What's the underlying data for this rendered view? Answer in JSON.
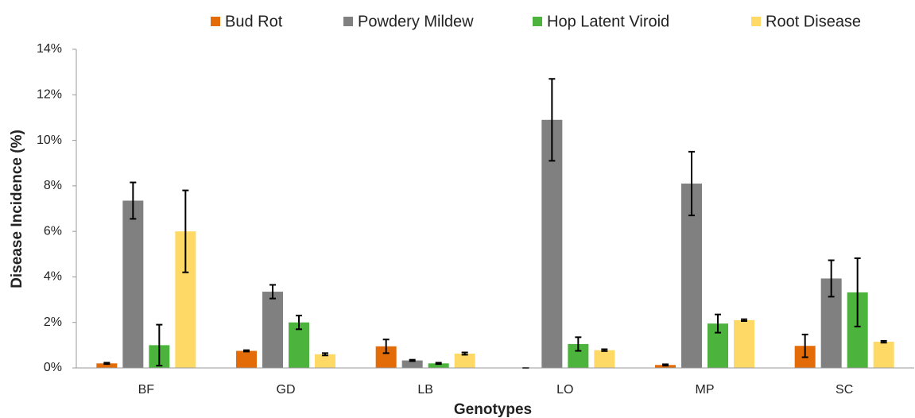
{
  "chart_data": {
    "type": "bar",
    "categories": [
      "BF",
      "GD",
      "LB",
      "LO",
      "MP",
      "SC"
    ],
    "x_label": "Genotypes",
    "y_label": "Disease Incidence (%)",
    "ylim": [
      0,
      14
    ],
    "yticks": [
      {
        "value": 0,
        "label": "0%"
      },
      {
        "value": 2,
        "label": "2%"
      },
      {
        "value": 4,
        "label": "4%"
      },
      {
        "value": 6,
        "label": "6%"
      },
      {
        "value": 8,
        "label": "8%"
      },
      {
        "value": 10,
        "label": "10%"
      },
      {
        "value": 12,
        "label": "12%"
      },
      {
        "value": 14,
        "label": "14%"
      }
    ],
    "grid": false,
    "legend": "top",
    "series": [
      {
        "name": "Bud Rot",
        "color": "#e36c09",
        "values": [
          0.2,
          0.75,
          0.95,
          0.0,
          0.13,
          0.97
        ],
        "errors": [
          0.03,
          0.03,
          0.3,
          0,
          0.03,
          0.5
        ]
      },
      {
        "name": "Powdery Mildew",
        "color": "#808080",
        "values": [
          7.35,
          3.35,
          0.33,
          10.9,
          8.1,
          3.93
        ],
        "errors": [
          0.8,
          0.3,
          0.03,
          1.8,
          1.4,
          0.8
        ]
      },
      {
        "name": "Hop Latent Viroid",
        "color": "#4cb33d",
        "values": [
          1.0,
          2.0,
          0.2,
          1.05,
          1.95,
          3.32
        ],
        "errors": [
          0.9,
          0.3,
          0.03,
          0.3,
          0.4,
          1.5
        ]
      },
      {
        "name": "Root Disease",
        "color": "#ffd966",
        "values": [
          6.0,
          0.6,
          0.63,
          0.78,
          2.1,
          1.15
        ],
        "errors": [
          1.8,
          0.05,
          0.05,
          0.04,
          0.04,
          0.04
        ]
      }
    ]
  }
}
